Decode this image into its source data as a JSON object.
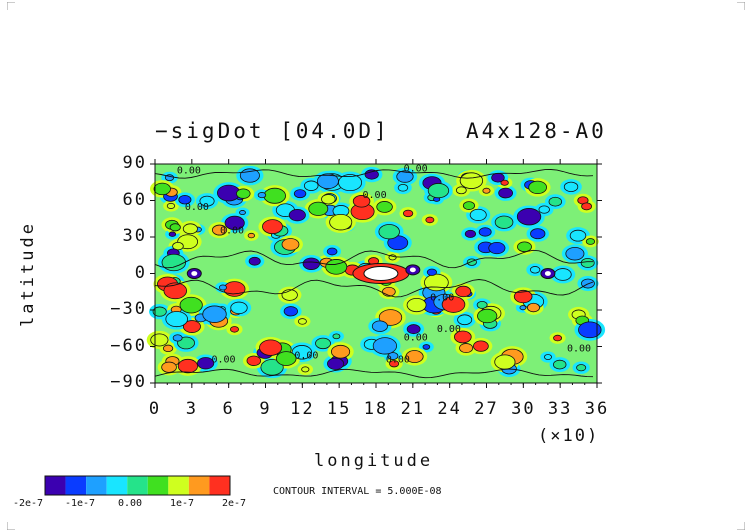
{
  "chart_data": {
    "type": "heatmap",
    "title_left": "−sigDot [04.0D]",
    "title_right": "A4x128-A0",
    "xlabel": "longitude",
    "ylabel": "latitude",
    "x_scale_note": "(×10)",
    "xticks": [
      "0",
      "3",
      "6",
      "9",
      "12",
      "15",
      "18",
      "21",
      "24",
      "27",
      "30",
      "33",
      "36"
    ],
    "yticks": [
      "90",
      "60",
      "30",
      "0",
      "−30",
      "−60",
      "−90"
    ],
    "xlim": [
      0,
      36
    ],
    "ylim": [
      -90,
      90
    ],
    "contour_labels": [
      "0.00",
      "0.00",
      "0.00",
      "0.00",
      "0.00",
      "0.00",
      "0.00",
      "0.00",
      "0.00",
      "0.00",
      "0.00",
      "0.00"
    ],
    "colorbar": {
      "colors": [
        "#3b00b0",
        "#0a3cff",
        "#1ea0ff",
        "#19e5ff",
        "#25e38a",
        "#40e020",
        "#cfff1f",
        "#ff9a1f",
        "#ff3020"
      ],
      "labels": [
        "-2e-7",
        "-1e-7",
        "0.00",
        "1e-7",
        "2e-7"
      ],
      "grid_color": "#7df077"
    },
    "contour_interval_text": "CONTOUR INTERVAL = 5.000E-08"
  }
}
